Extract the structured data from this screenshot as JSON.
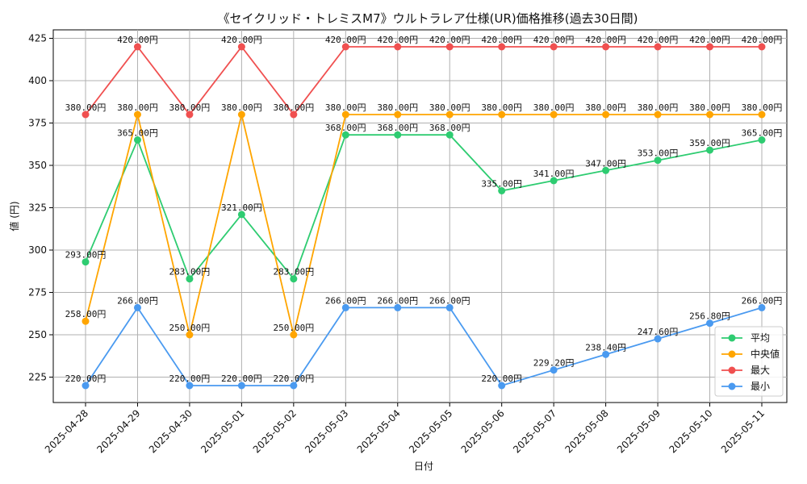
{
  "chart_data": {
    "type": "line",
    "title": "《セイクリッド・トレミスM7》ウルトラレア仕様(UR)価格推移(過去30日間)",
    "xlabel": "日付",
    "ylabel": "値 (円)",
    "ylim": [
      210,
      430
    ],
    "yticks": [
      225,
      250,
      275,
      300,
      325,
      350,
      375,
      400,
      425
    ],
    "grid": true,
    "legend_position": "bottom-right",
    "label_suffix": "円",
    "categories": [
      "2025-04-28",
      "2025-04-29",
      "2025-04-30",
      "2025-05-01",
      "2025-05-02",
      "2025-05-03",
      "2025-05-04",
      "2025-05-05",
      "2025-05-06",
      "2025-05-07",
      "2025-05-08",
      "2025-05-09",
      "2025-05-10",
      "2025-05-11"
    ],
    "series": [
      {
        "name": "平均",
        "color": "#2ecc71",
        "values": [
          293,
          365,
          283,
          321,
          283,
          368,
          368,
          368,
          335,
          341,
          347,
          353,
          359,
          365
        ]
      },
      {
        "name": "中央値",
        "color": "#ffa500",
        "values": [
          258,
          380,
          250,
          380,
          250,
          380,
          380,
          380,
          380,
          380,
          380,
          380,
          380,
          380
        ]
      },
      {
        "name": "最大",
        "color": "#f05050",
        "values": [
          380,
          420,
          380,
          420,
          380,
          420,
          420,
          420,
          420,
          420,
          420,
          420,
          420,
          420
        ]
      },
      {
        "name": "最小",
        "color": "#4a9af0",
        "values": [
          220,
          266,
          220,
          220,
          220,
          266,
          266,
          266,
          220,
          229.2,
          238.4,
          247.6,
          256.8,
          266
        ]
      }
    ]
  }
}
